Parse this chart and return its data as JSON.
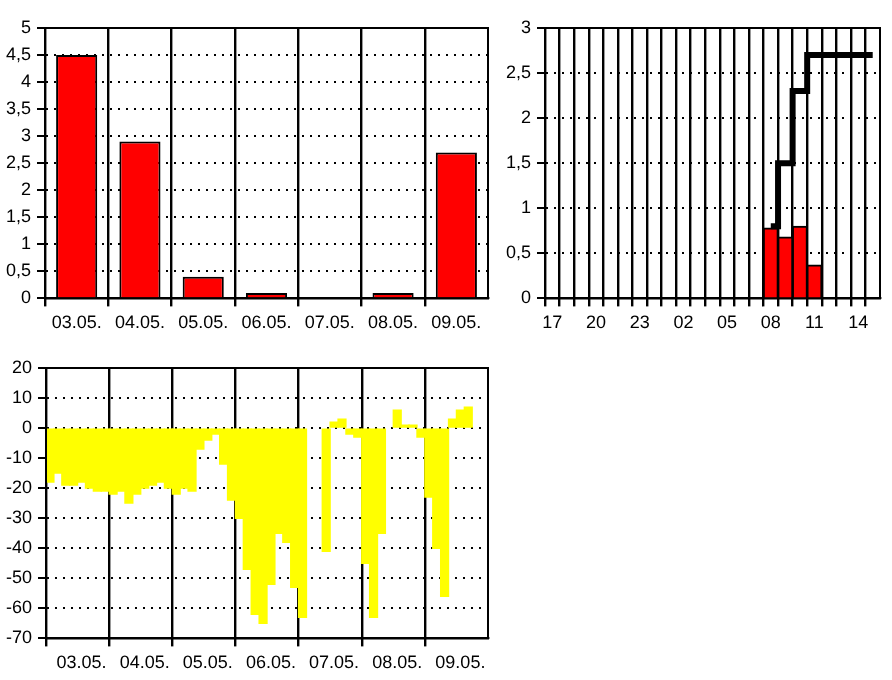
{
  "chart_data": [
    {
      "type": "bar",
      "categories": [
        "03.05.",
        "04.05.",
        "05.05.",
        "06.05.",
        "07.05.",
        "08.05.",
        "09.05."
      ],
      "values": [
        4.5,
        2.9,
        0.4,
        0.1,
        0,
        0.1,
        2.7
      ],
      "color": "#ff0000",
      "ylim": [
        0,
        5
      ],
      "yticks": [
        0,
        {
          "value": 0.5,
          "label": "0,5"
        },
        1,
        {
          "value": 1.5,
          "label": "1,5"
        },
        2,
        {
          "value": 2.5,
          "label": "2,5"
        },
        3,
        {
          "value": 3.5,
          "label": "3,5"
        },
        4,
        {
          "value": 4.5,
          "label": "4,5"
        },
        5
      ],
      "grid": true
    },
    {
      "type": "bar",
      "categories": [
        "17",
        null,
        null,
        "20",
        null,
        null,
        "23",
        null,
        null,
        "02",
        null,
        null,
        "05",
        null,
        null,
        "08",
        null,
        null,
        "11",
        null,
        null,
        "14",
        null
      ],
      "series": [
        {
          "type": "bar",
          "color": "#ff0000",
          "values": [
            null,
            null,
            null,
            null,
            null,
            null,
            null,
            null,
            null,
            null,
            null,
            null,
            null,
            null,
            null,
            0.78,
            0.68,
            0.8,
            0.37,
            null,
            null,
            null,
            null
          ]
        },
        {
          "type": "step",
          "color": "#000000",
          "values": [
            null,
            null,
            null,
            null,
            null,
            null,
            null,
            null,
            null,
            null,
            null,
            null,
            null,
            null,
            null,
            0.8,
            1.5,
            2.3,
            2.7,
            2.7,
            2.7,
            2.7,
            2.7
          ]
        }
      ],
      "ylim": [
        0,
        3
      ],
      "yticks": [
        0,
        {
          "value": 0.5,
          "label": "0,5"
        },
        1,
        {
          "value": 1.5,
          "label": "1,5"
        },
        2,
        {
          "value": 2.5,
          "label": "2,5"
        },
        3
      ],
      "grid": true
    },
    {
      "type": "bar",
      "color": "#ffff00",
      "categories": [
        null,
        null,
        null,
        null,
        "03.05.",
        null,
        null,
        null,
        null,
        null,
        null,
        null,
        "04.05.",
        null,
        null,
        null,
        null,
        null,
        null,
        null,
        "05.05.",
        null,
        null,
        null,
        null,
        null,
        null,
        null,
        "06.05.",
        null,
        null,
        null,
        null,
        null,
        null,
        null,
        "07.05.",
        null,
        null,
        null,
        null,
        null,
        null,
        null,
        "08.05.",
        null,
        null,
        null,
        null,
        null,
        null,
        null,
        "09.05.",
        null,
        null,
        null
      ],
      "values": [
        -18,
        -15,
        -19,
        -19,
        -18,
        -20,
        -21,
        -21,
        -22,
        -21,
        -25,
        -22,
        -20,
        -19,
        -18,
        -20,
        -22,
        -20,
        -21,
        -7,
        -4,
        -2,
        -12,
        -24,
        -30,
        -47,
        -62,
        -65,
        -52,
        -35,
        -38,
        -53,
        -63,
        null,
        null,
        -41,
        2,
        3,
        -2,
        -3,
        -45,
        -63,
        -35,
        null,
        6,
        1,
        1,
        -3,
        -23,
        -40,
        -56,
        3,
        6,
        7,
        null,
        null
      ],
      "ylim": [
        -70,
        20
      ],
      "yticks": [
        -70,
        -60,
        -50,
        -40,
        -30,
        -20,
        -10,
        0,
        10,
        20
      ],
      "grid": true
    }
  ]
}
